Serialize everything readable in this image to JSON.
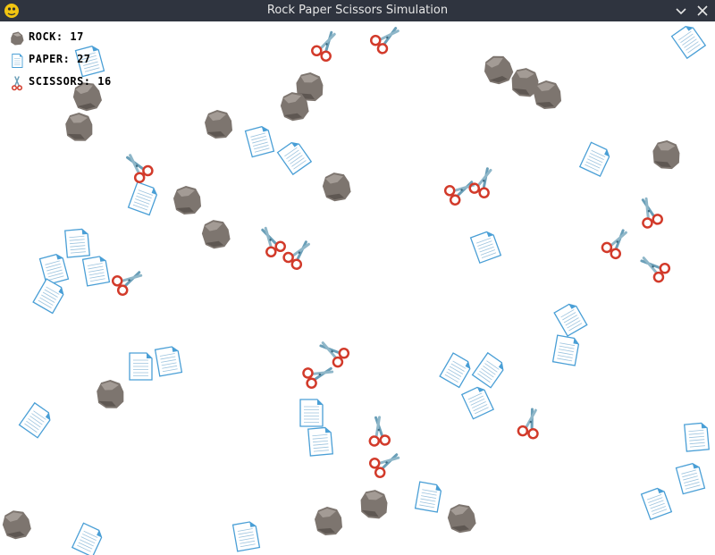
{
  "window": {
    "title": "Rock Paper Scissors Simulation",
    "minimize_symbol": "⌄",
    "close_symbol": "✕"
  },
  "hud": {
    "rock_label": "ROCK: 17",
    "paper_label": "PAPER: 27",
    "scissors_label": "SCISSORS: 16"
  },
  "colors": {
    "background": "#ffffff",
    "titlebar": "#2f343f",
    "rock": "#7d756f",
    "paper": "#4a9fd6",
    "scissors_handle": "#d23a2a",
    "scissors_blade": "#6a9fb8"
  },
  "entities": {
    "rock_count": 17,
    "paper_count": 27,
    "scissors_count": 16
  }
}
